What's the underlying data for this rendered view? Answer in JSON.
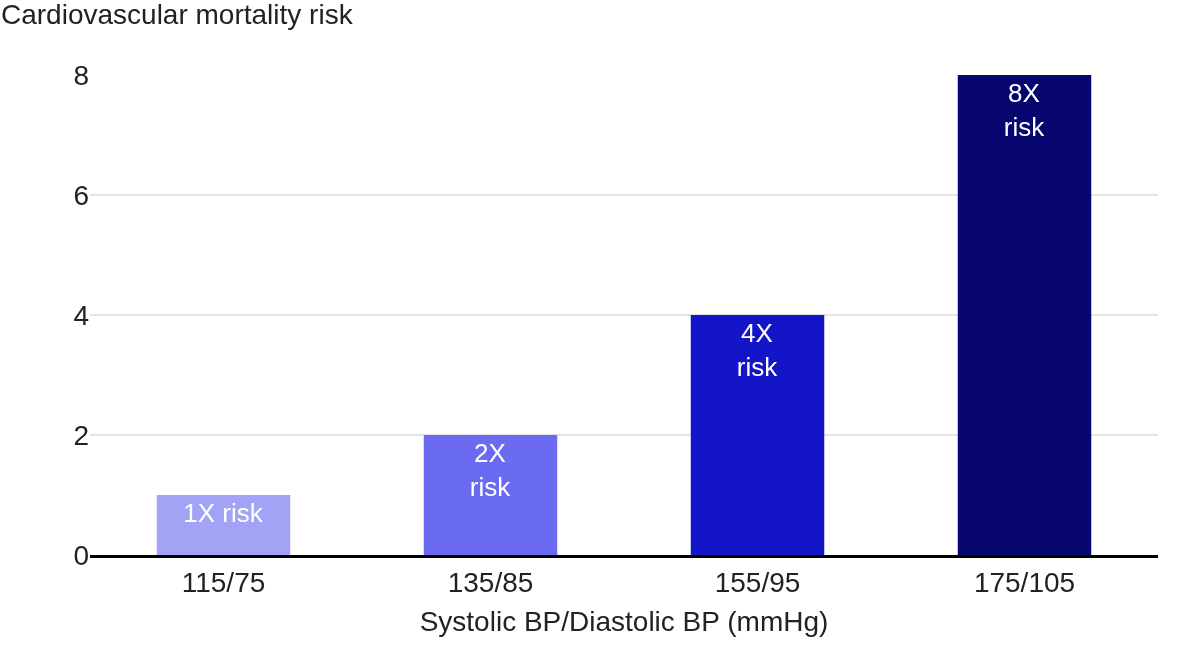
{
  "chart_data": {
    "type": "bar",
    "ylabel": "Cardiovascular mortality risk",
    "xlabel": "Systolic BP/Diastolic BP (mmHg)",
    "categories": [
      "115/75",
      "135/85",
      "155/95",
      "175/105"
    ],
    "values": [
      1,
      2,
      4,
      8
    ],
    "colors": [
      "#a3a3f5",
      "#6b6bf2",
      "#1414c8",
      "#06066e"
    ],
    "value_labels": [
      "1X risk",
      "2X\nrisk",
      "4X\nrisk",
      "8X\nrisk"
    ],
    "ylim": [
      0,
      8
    ],
    "yticks": [
      0,
      2,
      4,
      6,
      8
    ],
    "grid": "y",
    "legend": false
  }
}
